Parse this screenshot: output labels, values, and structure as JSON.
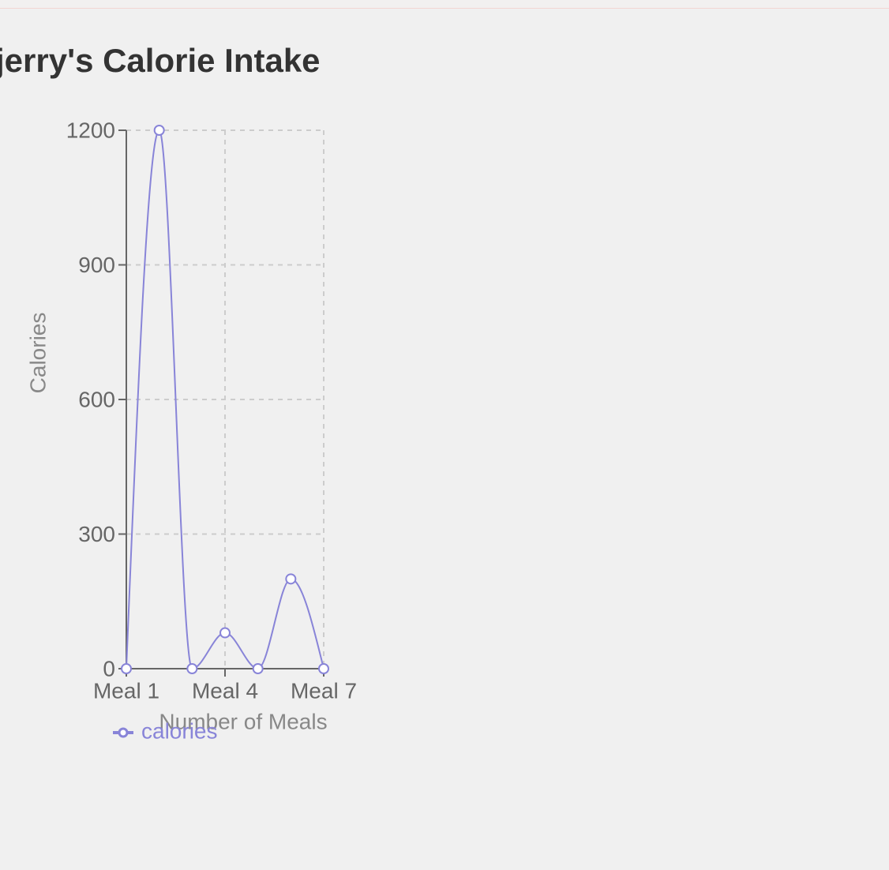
{
  "chart_data": {
    "type": "line",
    "title": "jerry's Calorie Intake",
    "x_label": "Number of Meals",
    "y_label": "Calories",
    "categories": [
      "Meal 1",
      null,
      null,
      "Meal 4",
      null,
      null,
      "Meal 7"
    ],
    "series": [
      {
        "name": "calories",
        "color": "#8884d8",
        "values": [
          0,
          1200,
          0,
          80,
          0,
          200,
          0
        ]
      }
    ],
    "ylim": [
      0,
      1200
    ],
    "yticks": [
      0,
      300,
      600,
      900,
      1200
    ],
    "grid": true,
    "legend": "bottom"
  }
}
